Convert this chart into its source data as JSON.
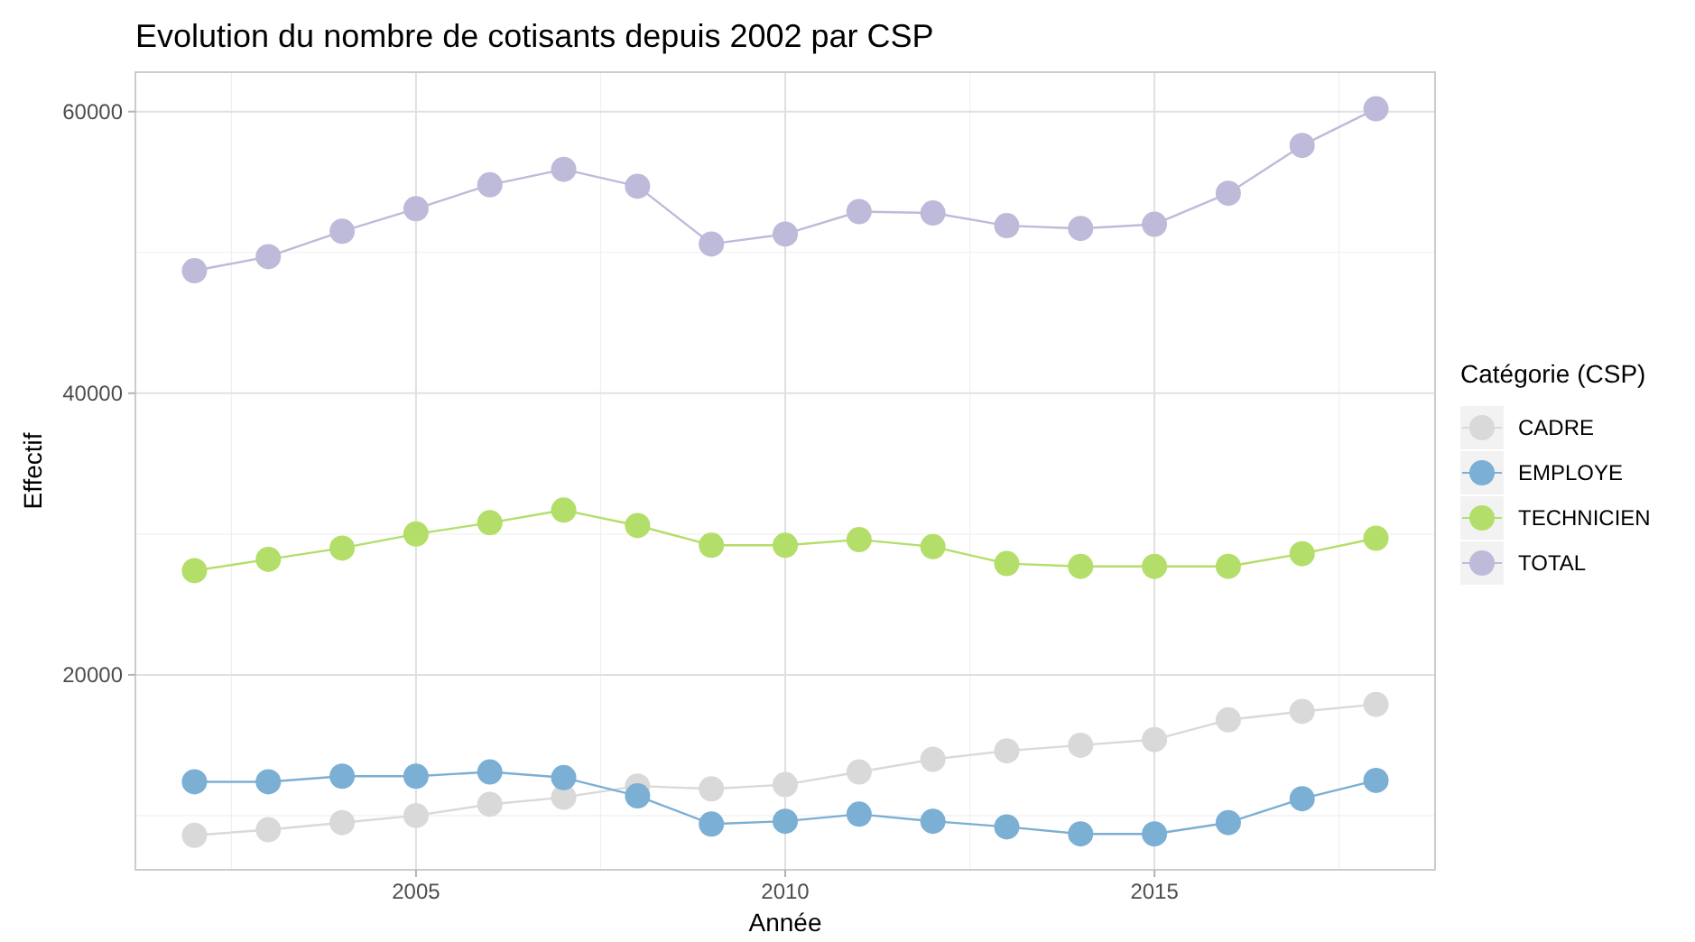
{
  "chart_data": {
    "type": "line",
    "title": "Evolution du nombre de cotisants depuis 2002 par CSP",
    "xlabel": "Année",
    "ylabel": "Effectif",
    "legend_title": "Catégorie (CSP)",
    "x": [
      2002,
      2003,
      2004,
      2005,
      2006,
      2007,
      2008,
      2009,
      2010,
      2011,
      2012,
      2013,
      2014,
      2015,
      2016,
      2017,
      2018
    ],
    "series": [
      {
        "name": "CADRE",
        "color": "#d9d9d9",
        "values": [
          8600,
          9000,
          9500,
          10000,
          10800,
          11300,
          12100,
          11900,
          12200,
          13100,
          14000,
          14600,
          15000,
          15400,
          16800,
          17400,
          17900
        ]
      },
      {
        "name": "EMPLOYE",
        "color": "#7bafd4",
        "values": [
          12400,
          12400,
          12800,
          12800,
          13100,
          12700,
          11400,
          9400,
          9600,
          10100,
          9600,
          9200,
          8700,
          8700,
          9500,
          11200,
          12500
        ]
      },
      {
        "name": "TECHNICIEN",
        "color": "#b3de69",
        "values": [
          27400,
          28200,
          29000,
          30000,
          30800,
          31700,
          30600,
          29200,
          29200,
          29600,
          29100,
          27900,
          27700,
          27700,
          27700,
          28600,
          29700
        ]
      },
      {
        "name": "TOTAL",
        "color": "#bebada",
        "values": [
          48700,
          49700,
          51500,
          53100,
          54800,
          55900,
          54700,
          50600,
          51300,
          52900,
          52800,
          51900,
          51700,
          52000,
          54200,
          57600,
          60200
        ]
      }
    ],
    "xlim": [
      2001.2,
      2018.8
    ],
    "xticks": [
      2005,
      2010,
      2015
    ],
    "ylim": [
      6150,
      62800
    ],
    "yticks": [
      20000,
      40000,
      60000
    ],
    "grid": true,
    "legend": "right",
    "marker": "circle",
    "line_style": "solid"
  }
}
